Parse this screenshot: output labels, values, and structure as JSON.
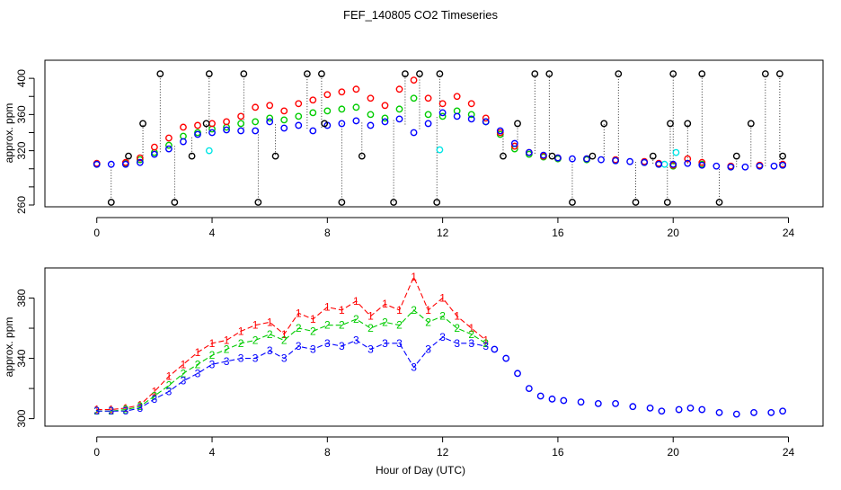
{
  "title": "FEF_140805  CO2 Timeseries",
  "xlabel": "Hour of Day (UTC)",
  "colors": {
    "s1": "#ff0000",
    "s2": "#00cc00",
    "s3": "#0000ff",
    "s4": "#00e5e5",
    "outlier": "#000000",
    "axis": "#000000"
  },
  "chart_data": [
    {
      "type": "scatter",
      "name": "top-panel",
      "ylabel": "approx. ppm",
      "xlim": [
        -1.8,
        25.2
      ],
      "ylim": [
        258,
        420
      ],
      "xticks": [
        0,
        4,
        8,
        12,
        16,
        20,
        24
      ],
      "yticks": [
        260,
        280,
        300,
        320,
        340,
        360,
        380,
        400
      ],
      "ytick_labels": [
        "260",
        "",
        "",
        "320",
        "",
        "360",
        "",
        "400"
      ],
      "series": [
        {
          "name": "red",
          "color": "#ff0000",
          "x": [
            0.0,
            1.0,
            1.5,
            2.0,
            2.5,
            3.0,
            3.5,
            4.0,
            4.5,
            5.0,
            5.5,
            6.0,
            6.5,
            7.0,
            7.5,
            8.0,
            8.5,
            9.0,
            9.5,
            10.0,
            10.5,
            11.0,
            11.5,
            12.0,
            12.5,
            13.0,
            13.5,
            14.0,
            14.5,
            15.0,
            15.5,
            16.0,
            17.0,
            18.0,
            19.0,
            19.5,
            20.0,
            20.5,
            21.0,
            22.0,
            23.0,
            23.8
          ],
          "y": [
            306,
            307,
            312,
            324,
            334,
            346,
            348,
            350,
            352,
            358,
            368,
            370,
            364,
            372,
            376,
            382,
            385,
            388,
            378,
            370,
            388,
            398,
            378,
            372,
            380,
            372,
            356,
            340,
            325,
            318,
            314,
            312,
            311,
            310,
            308,
            306,
            304,
            311,
            307,
            303,
            304,
            305
          ]
        },
        {
          "name": "green",
          "color": "#00cc00",
          "x": [
            0.0,
            1.0,
            1.5,
            2.0,
            2.5,
            3.0,
            3.5,
            4.0,
            4.5,
            5.0,
            5.5,
            6.0,
            6.5,
            7.0,
            7.5,
            8.0,
            8.5,
            9.0,
            9.5,
            10.0,
            10.5,
            11.0,
            11.5,
            12.0,
            12.5,
            13.0,
            13.5,
            14.0,
            14.5,
            15.0,
            15.5,
            16.0,
            17.0,
            18.0,
            19.0,
            19.5,
            20.0,
            21.0,
            22.0,
            23.0,
            23.8
          ],
          "y": [
            305,
            306,
            310,
            318,
            326,
            336,
            340,
            344,
            346,
            350,
            352,
            356,
            354,
            358,
            362,
            364,
            366,
            368,
            360,
            356,
            366,
            378,
            360,
            358,
            364,
            360,
            352,
            338,
            322,
            316,
            313,
            311,
            310,
            309,
            307,
            305,
            303,
            305,
            302,
            303,
            304
          ]
        },
        {
          "name": "blue",
          "color": "#0000ff",
          "x": [
            0.0,
            0.5,
            1.0,
            1.5,
            2.0,
            2.5,
            3.0,
            3.5,
            4.0,
            4.5,
            5.0,
            5.5,
            6.0,
            6.5,
            7.0,
            7.5,
            8.0,
            8.5,
            9.0,
            9.5,
            10.0,
            10.5,
            11.0,
            11.5,
            12.0,
            12.5,
            13.0,
            13.5,
            14.0,
            14.5,
            15.0,
            15.5,
            16.0,
            16.5,
            17.0,
            17.5,
            18.0,
            18.5,
            19.0,
            19.5,
            20.0,
            20.5,
            21.0,
            21.5,
            22.0,
            22.5,
            23.0,
            23.5,
            23.8
          ],
          "y": [
            305,
            305,
            305,
            307,
            316,
            322,
            330,
            338,
            340,
            343,
            342,
            342,
            352,
            345,
            348,
            342,
            348,
            350,
            353,
            348,
            352,
            355,
            340,
            350,
            362,
            358,
            355,
            352,
            342,
            328,
            318,
            315,
            312,
            311,
            311,
            310,
            309,
            308,
            307,
            305,
            305,
            306,
            304,
            303,
            302,
            302,
            303,
            303,
            304
          ]
        },
        {
          "name": "cyan",
          "color": "#00e5e5",
          "x": [
            3.9,
            11.9,
            20.1,
            19.7
          ],
          "y": [
            320,
            321,
            318,
            305
          ]
        },
        {
          "name": "outliers",
          "color": "#000000",
          "x": [
            0.5,
            1.1,
            1.6,
            2.2,
            2.7,
            3.3,
            3.8,
            3.9,
            5.1,
            5.6,
            6.2,
            7.3,
            7.8,
            7.9,
            8.5,
            9.2,
            10.3,
            10.7,
            11.2,
            11.8,
            11.9,
            14.1,
            14.6,
            15.2,
            15.7,
            15.8,
            16.5,
            17.2,
            17.6,
            18.1,
            18.7,
            19.3,
            19.8,
            19.9,
            20.0,
            20.5,
            21.0,
            21.6,
            22.2,
            22.7,
            23.2,
            23.7,
            23.8
          ],
          "y": [
            263,
            314,
            350,
            405,
            263,
            314,
            350,
            405,
            405,
            263,
            314,
            405,
            405,
            350,
            263,
            314,
            263,
            405,
            405,
            263,
            405,
            314,
            350,
            405,
            405,
            314,
            263,
            314,
            350,
            405,
            263,
            314,
            263,
            350,
            405,
            350,
            405,
            263,
            314,
            350,
            405,
            405,
            314
          ]
        }
      ]
    },
    {
      "type": "line",
      "name": "bottom-panel",
      "ylabel": "approx. ppm",
      "xlim": [
        -1.8,
        25.2
      ],
      "ylim": [
        295,
        400
      ],
      "xticks": [
        0,
        4,
        8,
        12,
        16,
        20,
        24
      ],
      "yticks": [
        300,
        320,
        340,
        360,
        380
      ],
      "ytick_labels": [
        "300",
        "",
        "340",
        "",
        "380"
      ],
      "series": [
        {
          "name": "1",
          "symbol": "1",
          "color": "#ff0000",
          "x": [
            0.0,
            0.5,
            1.0,
            1.5,
            2.0,
            2.5,
            3.0,
            3.5,
            4.0,
            4.5,
            5.0,
            5.5,
            6.0,
            6.5,
            7.0,
            7.5,
            8.0,
            8.5,
            9.0,
            9.5,
            10.0,
            10.5,
            11.0,
            11.5,
            12.0,
            12.5,
            13.0,
            13.5
          ],
          "y": [
            306,
            306,
            307,
            309,
            318,
            328,
            336,
            344,
            350,
            352,
            358,
            362,
            364,
            356,
            370,
            366,
            374,
            372,
            378,
            368,
            376,
            372,
            394,
            372,
            380,
            368,
            360,
            352
          ]
        },
        {
          "name": "2",
          "symbol": "2",
          "color": "#00cc00",
          "x": [
            0.0,
            0.5,
            1.0,
            1.5,
            2.0,
            2.5,
            3.0,
            3.5,
            4.0,
            4.5,
            5.0,
            5.5,
            6.0,
            6.5,
            7.0,
            7.5,
            8.0,
            8.5,
            9.0,
            9.5,
            10.0,
            10.5,
            11.0,
            11.5,
            12.0,
            12.5,
            13.0,
            13.5
          ],
          "y": [
            305,
            305,
            306,
            308,
            315,
            322,
            330,
            336,
            342,
            346,
            350,
            352,
            356,
            352,
            360,
            358,
            362,
            362,
            366,
            360,
            364,
            362,
            372,
            364,
            368,
            360,
            356,
            350
          ]
        },
        {
          "name": "3",
          "symbol": "3",
          "color": "#0000ff",
          "x": [
            0.0,
            0.5,
            1.0,
            1.5,
            2.0,
            2.5,
            3.0,
            3.5,
            4.0,
            4.5,
            5.0,
            5.5,
            6.0,
            6.5,
            7.0,
            7.5,
            8.0,
            8.5,
            9.0,
            9.5,
            10.0,
            10.5,
            11.0,
            11.5,
            12.0,
            12.5,
            13.0,
            13.5
          ],
          "y": [
            305,
            305,
            305,
            307,
            313,
            318,
            325,
            330,
            336,
            338,
            340,
            340,
            345,
            340,
            348,
            346,
            350,
            348,
            352,
            346,
            350,
            350,
            334,
            346,
            354,
            350,
            350,
            348
          ]
        },
        {
          "name": "merged",
          "symbol": "o",
          "color": "#0000ff",
          "x": [
            13.8,
            14.2,
            14.6,
            15.0,
            15.4,
            15.8,
            16.2,
            16.8,
            17.4,
            18.0,
            18.6,
            19.2,
            19.6,
            20.2,
            20.6,
            21.0,
            21.6,
            22.2,
            22.8,
            23.4,
            23.8
          ],
          "y": [
            346,
            340,
            330,
            320,
            315,
            313,
            312,
            311,
            310,
            310,
            308,
            307,
            305,
            306,
            307,
            306,
            304,
            303,
            304,
            304,
            305
          ]
        }
      ]
    }
  ]
}
